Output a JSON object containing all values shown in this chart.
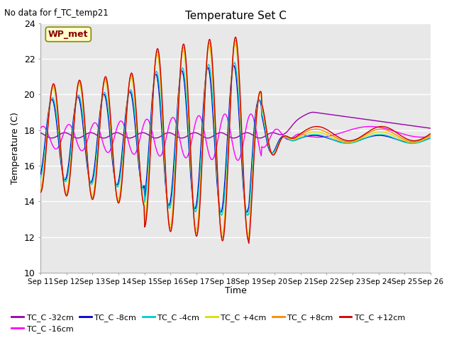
{
  "title": "Temperature Set C",
  "subtitle": "No data for f_TC_temp21",
  "xlabel": "Time",
  "ylabel": "Temperature (C)",
  "ylim": [
    10,
    24
  ],
  "yticks": [
    10,
    12,
    14,
    16,
    18,
    20,
    22,
    24
  ],
  "x_labels": [
    "Sep 11",
    "Sep 12",
    "Sep 13",
    "Sep 14",
    "Sep 15",
    "Sep 16",
    "Sep 17",
    "Sep 18",
    "Sep 19",
    "Sep 20",
    "Sep 21",
    "Sep 22",
    "Sep 23",
    "Sep 24",
    "Sep 25",
    "Sep 26"
  ],
  "wp_met_label": "WP_met",
  "wp_met_color": "#880000",
  "wp_met_bg": "#ffffcc",
  "wp_met_edge": "#888800",
  "series": [
    {
      "label": "TC_C -32cm",
      "color": "#9900aa"
    },
    {
      "label": "TC_C -16cm",
      "color": "#ff00ff"
    },
    {
      "label": "TC_C -8cm",
      "color": "#0000cc"
    },
    {
      "label": "TC_C -4cm",
      "color": "#00cccc"
    },
    {
      "label": "TC_C +4cm",
      "color": "#dddd00"
    },
    {
      "label": "TC_C +8cm",
      "color": "#ff8800"
    },
    {
      "label": "TC_C +12cm",
      "color": "#cc0000"
    }
  ],
  "bg_color": "#e8e8e8",
  "base_temp": 17.5
}
